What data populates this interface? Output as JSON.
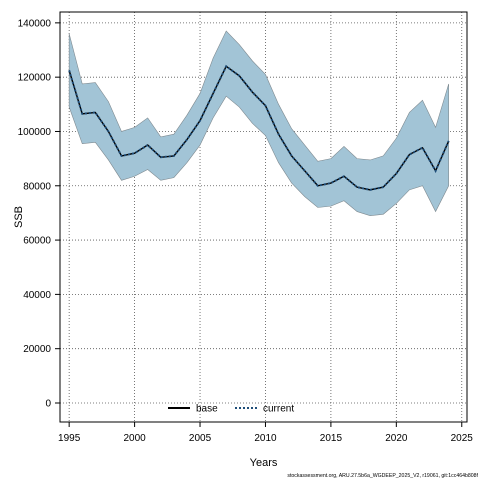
{
  "chart_data": {
    "type": "line",
    "title": "",
    "xlabel": "Years",
    "ylabel": "SSB",
    "xlim": [
      1994.3,
      2025.4
    ],
    "ylim": [
      -7000,
      144000
    ],
    "xticks": [
      1995,
      2000,
      2005,
      2010,
      2015,
      2020,
      2025
    ],
    "xtick_labels": [
      "1995",
      "2000",
      "2005",
      "2010",
      "2015",
      "2020",
      "2025"
    ],
    "yticks": [
      0,
      20000,
      40000,
      60000,
      80000,
      100000,
      120000,
      140000
    ],
    "ytick_labels": [
      "0",
      "20000",
      "40000",
      "60000",
      "80000",
      "100000",
      "120000",
      "140000"
    ],
    "grid": true,
    "legend": {
      "placement": "bottom-center",
      "entries": [
        {
          "label": "base",
          "style": "solid",
          "color": "#000000"
        },
        {
          "label": "current",
          "style": "dotted",
          "color": "#1f4e79"
        }
      ]
    },
    "band_color": "#a2c4d6",
    "band_edge_color": "#7f8a90",
    "x": [
      1995,
      1996,
      1997,
      1998,
      1999,
      2000,
      2001,
      2002,
      2003,
      2004,
      2005,
      2006,
      2007,
      2008,
      2009,
      2010,
      2011,
      2012,
      2013,
      2014,
      2015,
      2016,
      2017,
      2018,
      2019,
      2020,
      2021,
      2022,
      2023,
      2024
    ],
    "series": [
      {
        "name": "current",
        "values": [
          122500,
          106500,
          107000,
          100000,
          91000,
          92000,
          95000,
          90500,
          91000,
          97000,
          104000,
          114000,
          124000,
          120500,
          114500,
          109500,
          99000,
          91000,
          85500,
          80000,
          81000,
          83500,
          79500,
          78500,
          79500,
          84500,
          91500,
          94000,
          85500,
          96500
        ],
        "lower": [
          109000,
          95500,
          96000,
          89500,
          82000,
          83500,
          86000,
          82000,
          83000,
          88500,
          95000,
          105000,
          113000,
          109000,
          103000,
          98500,
          88500,
          81000,
          76000,
          72000,
          72500,
          74500,
          70500,
          69000,
          69500,
          73500,
          78500,
          80000,
          70500,
          80000
        ],
        "upper": [
          136000,
          117500,
          118000,
          111000,
          100000,
          101500,
          105000,
          98000,
          99000,
          106000,
          114000,
          127000,
          137000,
          132000,
          126000,
          121000,
          110000,
          101000,
          95000,
          89000,
          90000,
          94500,
          90000,
          89500,
          91000,
          97500,
          107000,
          111500,
          101500,
          117500
        ]
      }
    ],
    "footer": "stockassessment.org, ARU.27.5b6a_WGDEEP_2025_V2, r19061, git:1cc464b808f"
  }
}
